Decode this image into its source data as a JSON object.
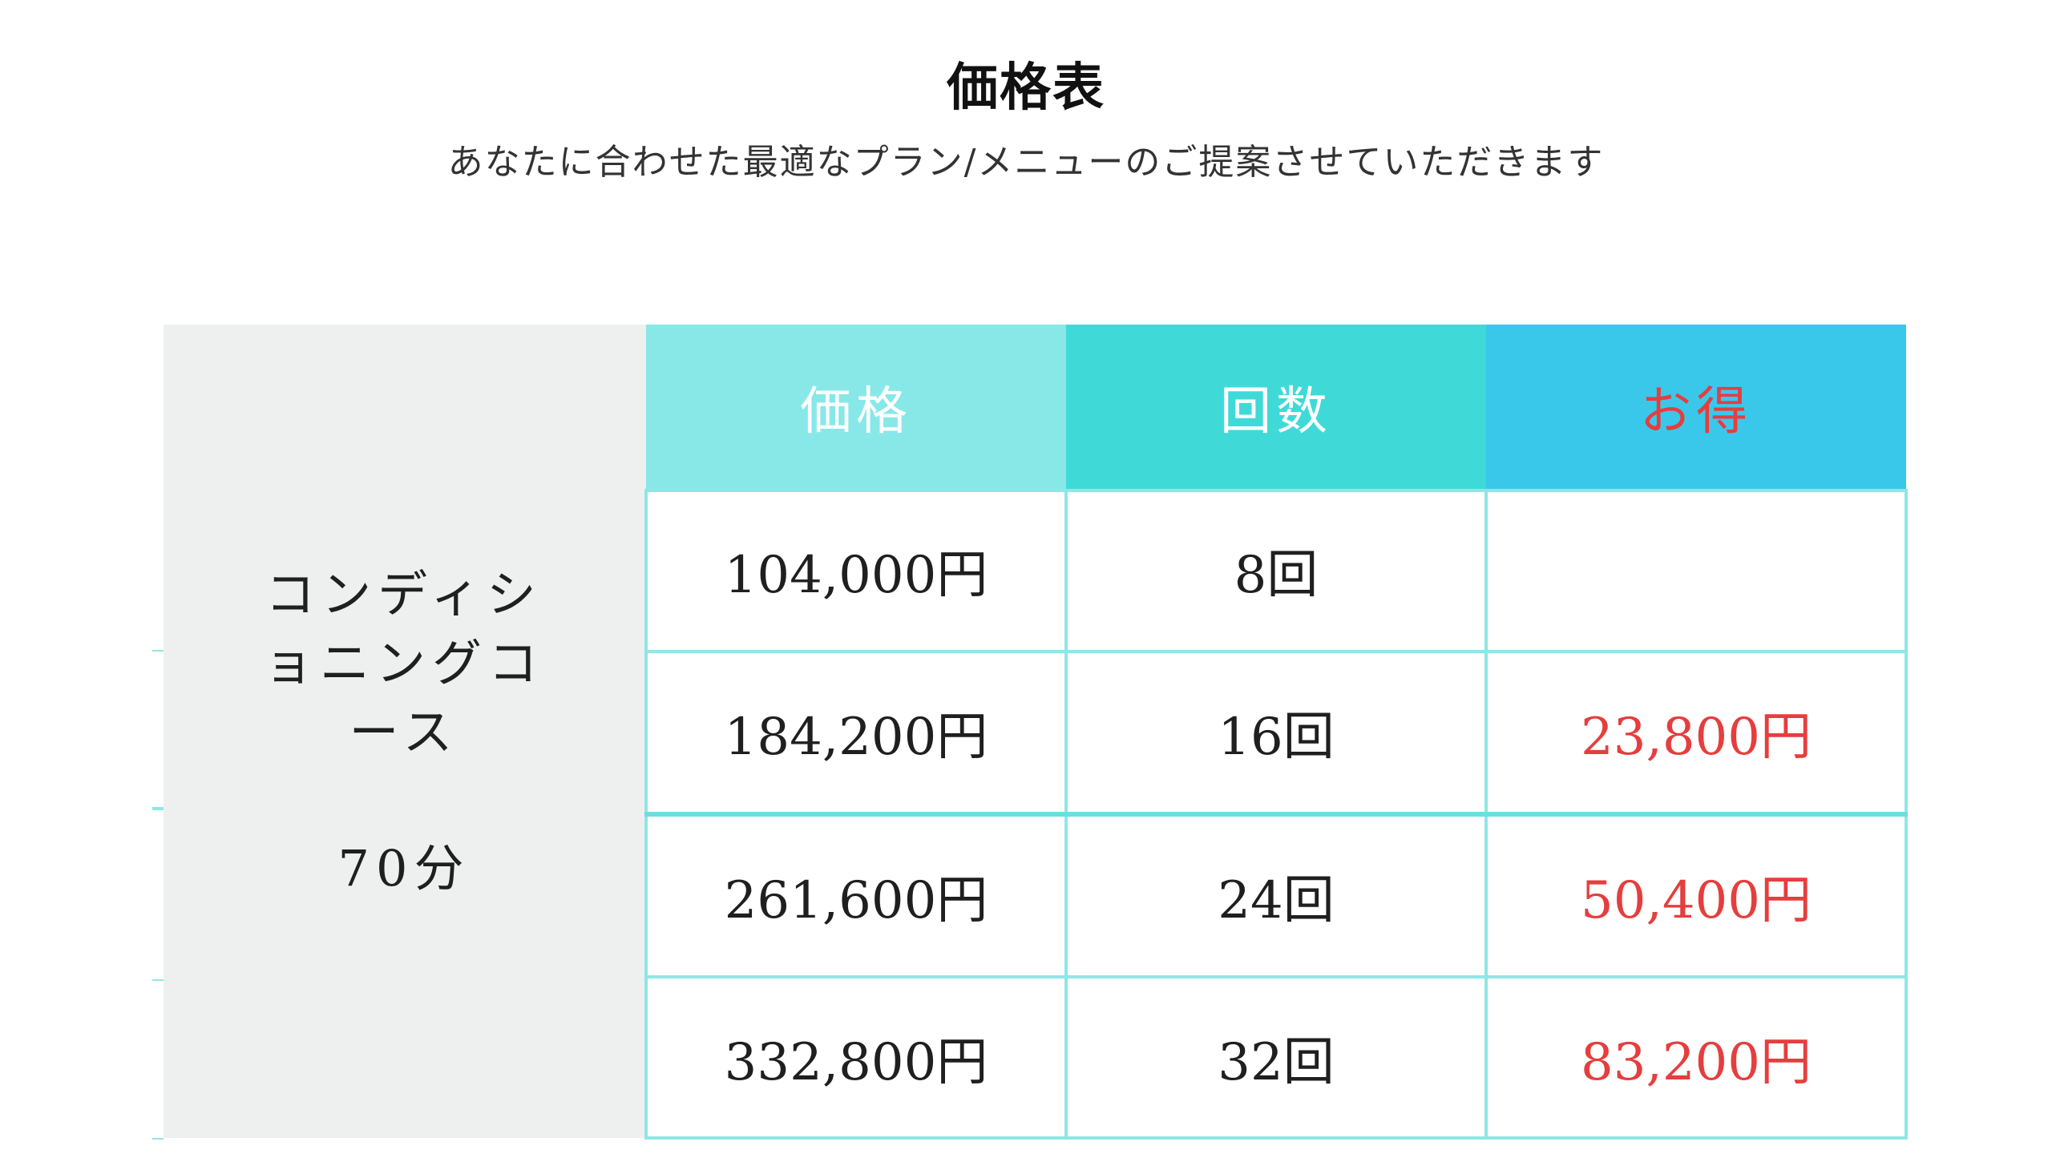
{
  "header": {
    "title": "価格表",
    "subtitle": "あなたに合わせた最適なプラン/メニューのご提案させていただきます"
  },
  "table": {
    "course_name": "コンディショニングコース",
    "course_duration": "70分",
    "columns": [
      "価格",
      "回数",
      "お得"
    ],
    "rows": [
      {
        "price": "104,000円",
        "count": "8回",
        "saving": ""
      },
      {
        "price": "184,200円",
        "count": "16回",
        "saving": "23,800円"
      },
      {
        "price": "261,600円",
        "count": "24回",
        "saving": "50,400円"
      },
      {
        "price": "332,800円",
        "count": "32回",
        "saving": "83,200円"
      }
    ]
  },
  "colors": {
    "header_price_bg": "#88e8e8",
    "header_count_bg": "#3fdad8",
    "header_saving_bg": "#39c8ea",
    "saving_text": "#e53e3e",
    "grid_line": "#8ee6e6",
    "course_bg": "#eef0ef"
  }
}
